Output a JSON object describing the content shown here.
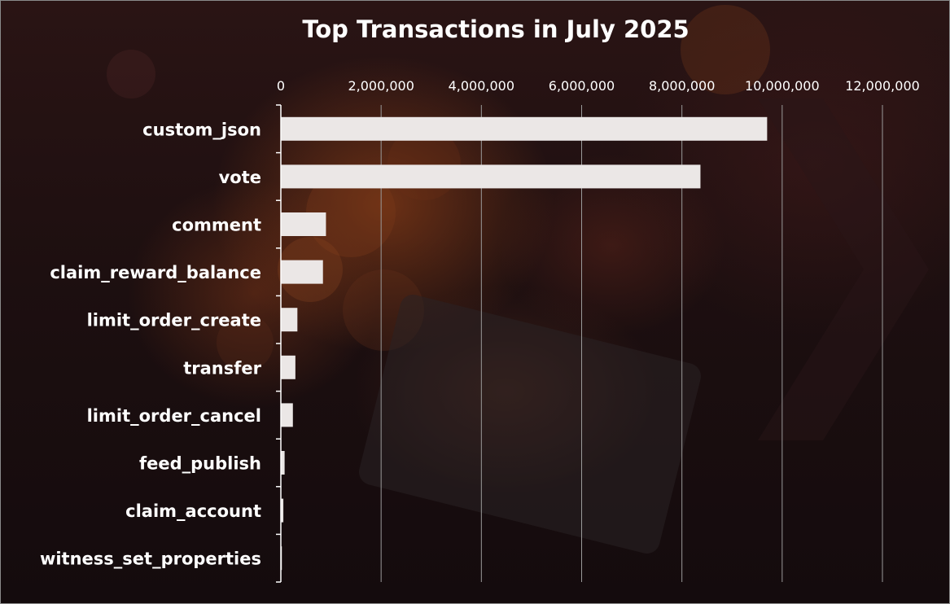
{
  "chart_data": {
    "type": "bar",
    "orientation": "horizontal",
    "title": "Top Transactions in July 2025",
    "xlabel": "",
    "ylabel": "",
    "xlim": [
      0,
      12000000
    ],
    "ticks": [
      "0",
      "2,000,000",
      "4,000,000",
      "6,000,000",
      "8,000,000",
      "10,000,000",
      "12,000,000"
    ],
    "tick_values": [
      0,
      2000000,
      4000000,
      6000000,
      8000000,
      10000000,
      12000000
    ],
    "categories": [
      "custom_json",
      "vote",
      "comment",
      "claim_reward_balance",
      "limit_order_create",
      "transfer",
      "limit_order_cancel",
      "feed_publish",
      "claim_account",
      "witness_set_properties"
    ],
    "values": [
      9700000,
      8370000,
      900000,
      840000,
      330000,
      290000,
      240000,
      75000,
      50000,
      20000
    ],
    "grid": true,
    "axis_position": "top",
    "colors": {
      "bar": "#ebe7e6",
      "grid": "#9a9a9a",
      "text": "#ffffff"
    }
  }
}
